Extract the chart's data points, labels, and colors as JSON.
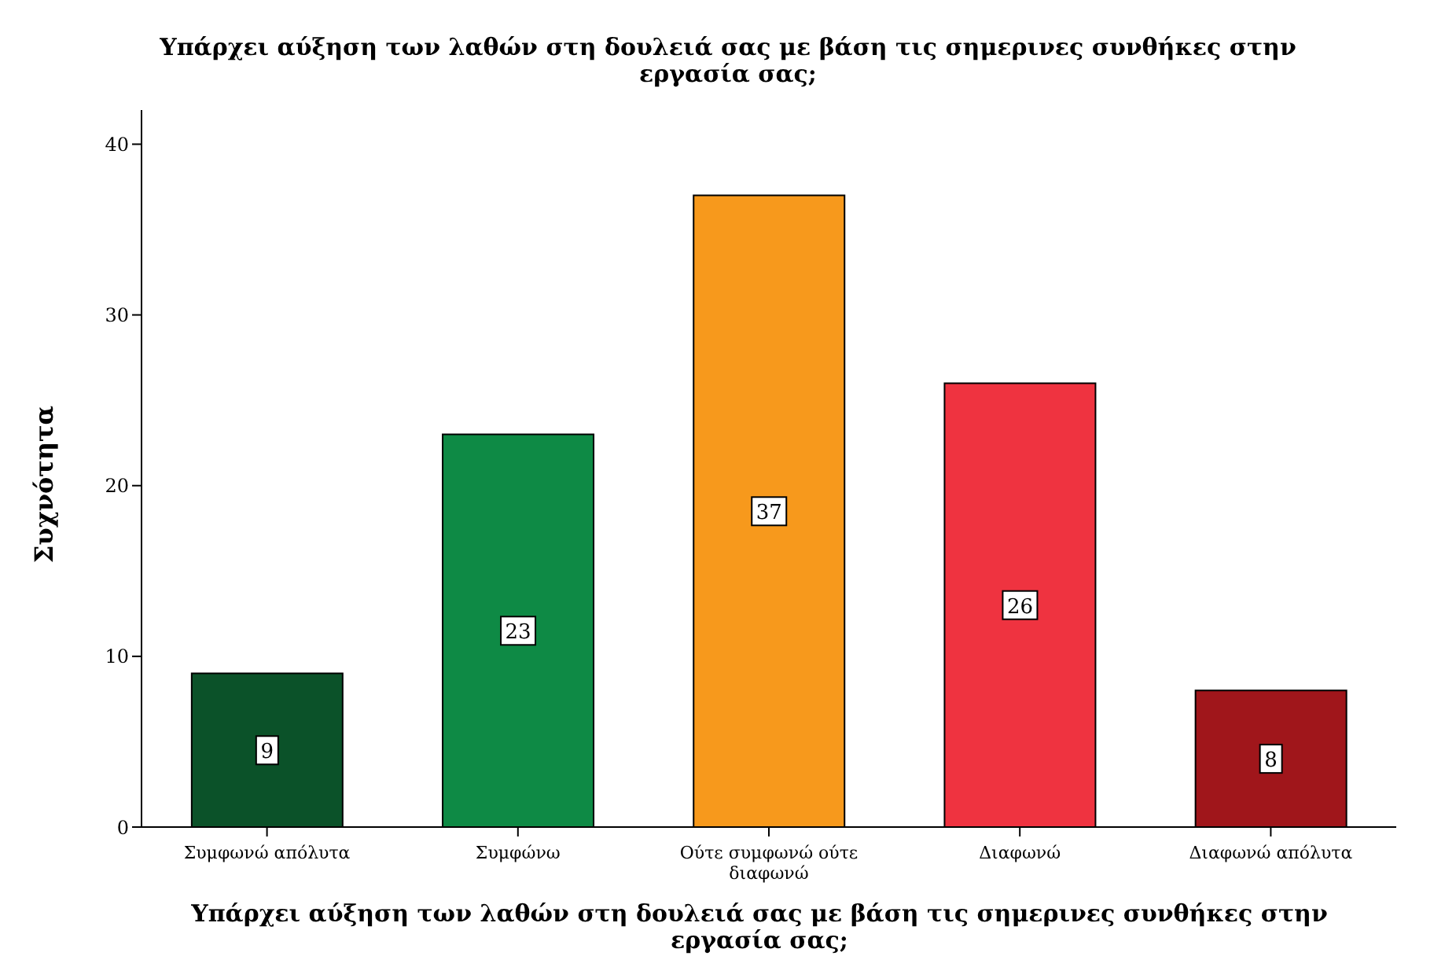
{
  "chart_data": {
    "type": "bar",
    "title": "Υπάρχει αύξηση των λαθών στη δουλειά σας με βάση τις σημερινες συνθήκες στην εργασία σας;",
    "xlabel": "Υπάρχει αύξηση των λαθών στη δουλειά σας με βάση τις σημερινες συνθήκες στην εργασία σας;",
    "ylabel": "Συχνότητα",
    "categories": [
      "Συμφωνώ απόλυτα",
      "Συμφώνω",
      "Ούτε συμφωνώ ούτε διαφωνώ",
      "Διαφωνώ",
      "Διαφωνώ απόλυτα"
    ],
    "values": [
      9,
      23,
      37,
      26,
      8
    ],
    "colors": [
      "#0b5229",
      "#0e8a45",
      "#f7991c",
      "#ef3340",
      "#a0161b"
    ],
    "ylim": [
      0,
      42
    ],
    "yticks": [
      0,
      10,
      20,
      30,
      40
    ],
    "data_labels": true
  }
}
